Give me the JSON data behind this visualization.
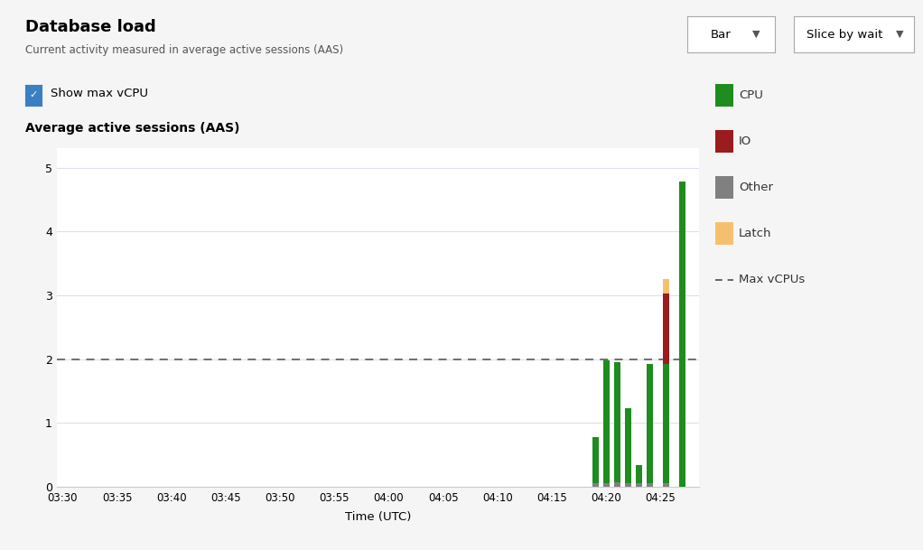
{
  "title": "Database load",
  "subtitle": "Current activity measured in average active sessions (AAS)",
  "chart_label": "Average active sessions (AAS)",
  "xlabel": "Time (UTC)",
  "checkbox_label": "Show max vCPU",
  "max_vcpu": 2.0,
  "background_color": "#f5f5f5",
  "plot_background": "#ffffff",
  "bar_width": 0.55,
  "xlim_start_min": 209.5,
  "xlim_end_min": 268.5,
  "ylim": [
    0,
    5.3
  ],
  "yticks": [
    0,
    1,
    2,
    3,
    4,
    5
  ],
  "xtick_labels": [
    "03:30",
    "03:35",
    "03:40",
    "03:45",
    "03:50",
    "03:55",
    "04:00",
    "04:05",
    "04:10",
    "04:15",
    "04:20",
    "04:25"
  ],
  "xtick_positions": [
    210,
    215,
    220,
    225,
    230,
    235,
    240,
    245,
    250,
    255,
    260,
    265
  ],
  "colors": {
    "CPU": "#1e8c1e",
    "IO": "#9b1c1c",
    "Other": "#808080",
    "Latch": "#f5c06e",
    "max_vcpu_line": "#666666"
  },
  "bars": [
    {
      "time_min": 259,
      "CPU": 0.73,
      "IO": 0.0,
      "Other": 0.05,
      "Latch": 0.0
    },
    {
      "time_min": 260,
      "CPU": 1.93,
      "IO": 0.0,
      "Other": 0.05,
      "Latch": 0.0
    },
    {
      "time_min": 261,
      "CPU": 1.88,
      "IO": 0.0,
      "Other": 0.07,
      "Latch": 0.0
    },
    {
      "time_min": 262,
      "CPU": 1.18,
      "IO": 0.0,
      "Other": 0.05,
      "Latch": 0.0
    },
    {
      "time_min": 263,
      "CPU": 0.28,
      "IO": 0.0,
      "Other": 0.06,
      "Latch": 0.0
    },
    {
      "time_min": 264,
      "CPU": 1.88,
      "IO": 0.0,
      "Other": 0.05,
      "Latch": 0.0
    },
    {
      "time_min": 265.5,
      "CPU": 1.88,
      "IO": 1.1,
      "Other": 0.05,
      "Latch": 0.22
    },
    {
      "time_min": 267,
      "CPU": 4.78,
      "IO": 0.0,
      "Other": 0.0,
      "Latch": 0.0
    }
  ],
  "legend_items": [
    {
      "label": "CPU",
      "color": "#1e8c1e",
      "style": "rect"
    },
    {
      "label": "IO",
      "color": "#9b1c1c",
      "style": "rect"
    },
    {
      "label": "Other",
      "color": "#808080",
      "style": "rect"
    },
    {
      "label": "Latch",
      "color": "#f5c06e",
      "style": "rect"
    },
    {
      "label": "Max vCPUs",
      "color": "#666666",
      "style": "dash"
    }
  ],
  "button1_text": "Bar",
  "button2_text": "Slice by wait"
}
